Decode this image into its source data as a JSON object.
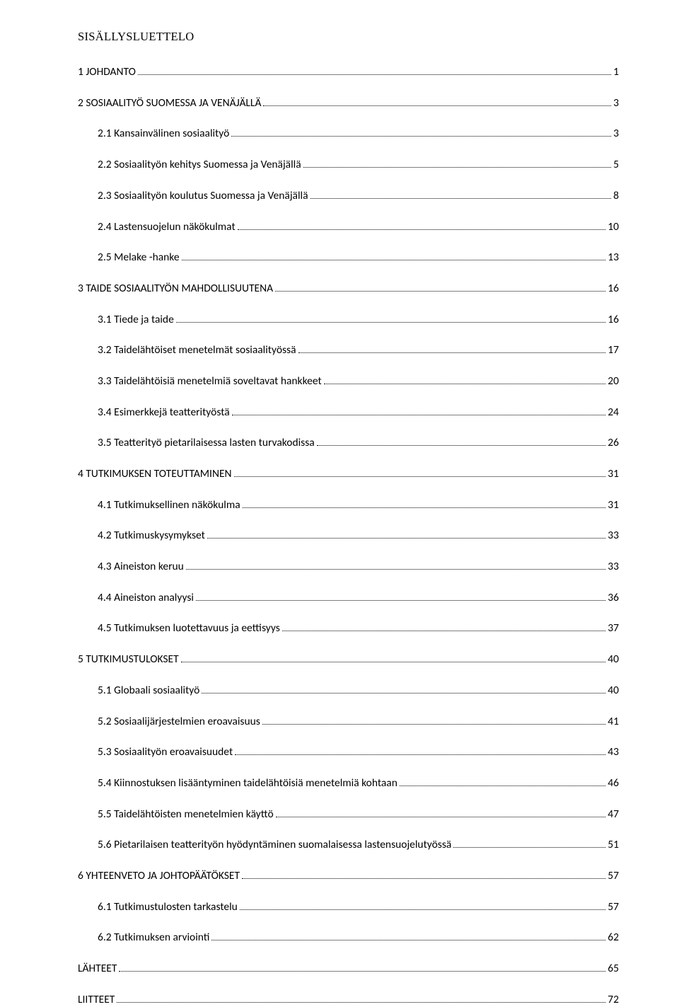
{
  "title": "SISÄLLYSLUETTELO",
  "entries": [
    {
      "level": 1,
      "text": "1 JOHDANTO",
      "page": "1"
    },
    {
      "level": 1,
      "text": "2 SOSIAALITYÖ SUOMESSA JA VENÄJÄLLÄ",
      "page": "3"
    },
    {
      "level": 2,
      "text": "2.1 Kansainvälinen sosiaalityö",
      "page": "3"
    },
    {
      "level": 2,
      "text": "2.2 Sosiaalityön kehitys Suomessa ja Venäjällä",
      "page": "5"
    },
    {
      "level": 2,
      "text": "2.3 Sosiaalityön koulutus Suomessa ja Venäjällä",
      "page": "8"
    },
    {
      "level": 2,
      "text": "2.4 Lastensuojelun näkökulmat",
      "page": "10"
    },
    {
      "level": 2,
      "text": "2.5 Melake -hanke",
      "page": "13"
    },
    {
      "level": 1,
      "text": "3 TAIDE SOSIAALITYÖN MAHDOLLISUUTENA",
      "page": "16"
    },
    {
      "level": 2,
      "text": "3.1 Tiede ja taide",
      "page": "16"
    },
    {
      "level": 2,
      "text": "3.2 Taidelähtöiset menetelmät sosiaalityössä",
      "page": "17"
    },
    {
      "level": 2,
      "text": "3.3 Taidelähtöisiä menetelmiä soveltavat hankkeet",
      "page": "20"
    },
    {
      "level": 2,
      "text": "3.4 Esimerkkejä teatterityöstä",
      "page": "24"
    },
    {
      "level": 2,
      "text": "3.5 Teatterityö pietarilaisessa lasten turvakodissa",
      "page": "26"
    },
    {
      "level": 1,
      "text": "4 TUTKIMUKSEN TOTEUTTAMINEN",
      "page": "31"
    },
    {
      "level": 2,
      "text": "4.1 Tutkimuksellinen näkökulma",
      "page": "31"
    },
    {
      "level": 2,
      "text": "4.2 Tutkimuskysymykset",
      "page": "33"
    },
    {
      "level": 2,
      "text": "4.3 Aineiston keruu",
      "page": "33"
    },
    {
      "level": 2,
      "text": "4.4 Aineiston analyysi",
      "page": "36"
    },
    {
      "level": 2,
      "text": "4.5 Tutkimuksen luotettavuus ja eettisyys",
      "page": "37"
    },
    {
      "level": 1,
      "text": "5 TUTKIMUSTULOKSET",
      "page": "40"
    },
    {
      "level": 2,
      "text": "5.1 Globaali sosiaalityö",
      "page": "40"
    },
    {
      "level": 2,
      "text": "5.2 Sosiaalijärjestelmien eroavaisuus",
      "page": "41"
    },
    {
      "level": 2,
      "text": "5.3 Sosiaalityön eroavaisuudet",
      "page": "43"
    },
    {
      "level": 2,
      "text": "5.4 Kiinnostuksen lisääntyminen taidelähtöisiä menetelmiä kohtaan",
      "page": "46"
    },
    {
      "level": 2,
      "text": "5.5 Taidelähtöisten menetelmien käyttö",
      "page": "47"
    },
    {
      "level": 2,
      "text": "5.6 Pietarilaisen teatterityön hyödyntäminen suomalaisessa lastensuojelutyössä",
      "page": "51"
    },
    {
      "level": 1,
      "text": "6 YHTEENVETO JA JOHTOPÄÄTÖKSET",
      "page": "57"
    },
    {
      "level": 2,
      "text": "6.1 Tutkimustulosten tarkastelu",
      "page": "57"
    },
    {
      "level": 2,
      "text": "6.2 Tutkimuksen arviointi",
      "page": "62"
    },
    {
      "level": 1,
      "text": "LÄHTEET",
      "page": "65"
    },
    {
      "level": 1,
      "text": "LIITTEET",
      "page": "72"
    }
  ]
}
